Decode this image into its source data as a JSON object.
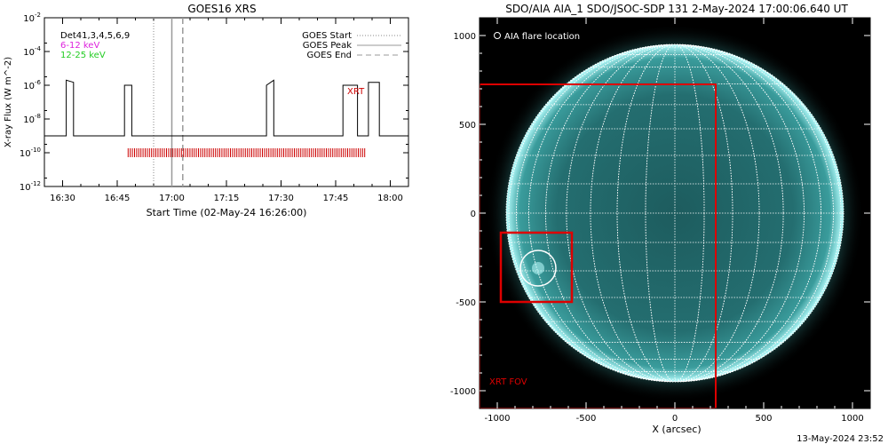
{
  "chart_data": [
    {
      "type": "line",
      "title": "GOES16 XRS",
      "xlabel": "Start Time (02-May-24 16:26:00)",
      "ylabel": "X-ray Flux (W m^-2)",
      "y_scale": "log",
      "xlim": [
        "16:25",
        "18:05"
      ],
      "ylim": [
        1e-12,
        0.01
      ],
      "x_ticks": [
        "16:30",
        "16:45",
        "17:00",
        "17:15",
        "17:30",
        "17:45",
        "18:00"
      ],
      "y_ticks": [
        "10^-12",
        "10^-10",
        "10^-8",
        "10^-6",
        "10^-4",
        "10^-2"
      ],
      "annotations": {
        "det_label": "Det41,3,4,5,6,9",
        "band_low": "6-12 keV",
        "band_high": "12-25 keV",
        "xrt_label": "XRT"
      },
      "legend": {
        "placement": "top-right",
        "entries": [
          "GOES Start",
          "GOES Peak",
          "GOES End"
        ]
      },
      "markers": {
        "goes_start": "16:55",
        "goes_peak": "17:00",
        "goes_end": "17:03"
      },
      "series": [
        {
          "x": [
            "16:25",
            "16:31",
            "16:31",
            "16:33",
            "16:33",
            "16:47",
            "16:47",
            "16:49",
            "16:49",
            "17:26",
            "17:26",
            "17:28",
            "17:28",
            "17:47",
            "17:47",
            "17:51",
            "17:51",
            "17:54",
            "17:54",
            "17:57",
            "17:57",
            "18:05"
          ],
          "values": [
            1e-09,
            1e-09,
            2e-06,
            1.5e-06,
            1e-09,
            1e-09,
            1e-06,
            1e-06,
            1e-09,
            1e-09,
            1e-06,
            2e-06,
            1e-09,
            1e-09,
            1e-06,
            1e-06,
            1e-09,
            1e-09,
            1.5e-06,
            1.5e-06,
            1e-09,
            1e-09
          ]
        }
      ],
      "xrt_observations": {
        "start": "16:48",
        "end": "17:53",
        "level": 1e-10
      },
      "colors": {
        "band_low": "#dd22dd",
        "band_high": "#22cc22",
        "xrt": "#cc0000"
      }
    },
    {
      "type": "image",
      "title": "SDO/AIA AIA_1 SDO/JSOC-SDP 131  2-May-2024 17:00:06.640 UT",
      "xlabel": "X (arcsec)",
      "xlim": [
        -1100,
        1100
      ],
      "ylim": [
        -1100,
        1100
      ],
      "x_ticks": [
        "-1000",
        "-500",
        "0",
        "500",
        "1000"
      ],
      "y_ticks": [
        "1000",
        "500",
        "0",
        "-500",
        "-1000"
      ],
      "legend_text": "AIA flare location",
      "fov_label": "XRT FOV",
      "flare_location": {
        "x": -770,
        "y": -310,
        "radius": 100
      },
      "xrt_fov": {
        "x1": -1100,
        "x2": 230,
        "y1": -1100,
        "y2": 725
      },
      "xrt_inner_box": {
        "x1": -980,
        "x2": -580,
        "y1": -500,
        "y2": -110
      },
      "solar_radius": 950,
      "colors": {
        "disk": "#2a7f80",
        "limb": "#a8ffff",
        "fov": "#dd0000"
      }
    }
  ],
  "footer": {
    "timestamp": "13-May-2024 23:52"
  }
}
